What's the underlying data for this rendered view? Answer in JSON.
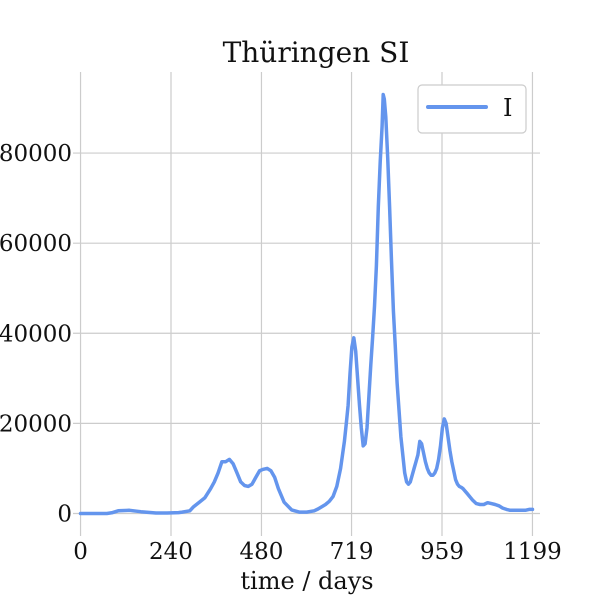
{
  "chart_data": {
    "type": "line",
    "title": "Thüringen SI",
    "xlabel": "time / days",
    "ylabel": "",
    "xlim": [
      -20,
      1219
    ],
    "ylim": [
      -5000,
      98000
    ],
    "x_ticks": [
      0,
      240,
      480,
      719,
      959,
      1199
    ],
    "x_tick_labels": [
      "0",
      "240",
      "480",
      "719",
      "959",
      "1199"
    ],
    "y_ticks": [
      0,
      20000,
      40000,
      60000,
      80000
    ],
    "y_tick_labels": [
      "0",
      "20000",
      "40000",
      "60000",
      "80000"
    ],
    "grid": true,
    "legend_position": "top-right",
    "colors": {
      "series": "#6495ED",
      "grid": "#cccccc",
      "legend_border": "#cccccc"
    },
    "series": [
      {
        "name": "I",
        "x": [
          0,
          40,
          70,
          85,
          100,
          130,
          160,
          200,
          230,
          260,
          270,
          290,
          300,
          315,
          330,
          345,
          355,
          365,
          375,
          385,
          395,
          405,
          415,
          425,
          435,
          445,
          455,
          465,
          475,
          485,
          495,
          505,
          515,
          525,
          540,
          560,
          580,
          600,
          620,
          630,
          640,
          650,
          660,
          670,
          680,
          690,
          695,
          700,
          705,
          710,
          715,
          720,
          725,
          730,
          735,
          740,
          745,
          750,
          755,
          760,
          765,
          770,
          775,
          780,
          785,
          790,
          795,
          800,
          803,
          806,
          810,
          815,
          820,
          825,
          830,
          835,
          840,
          845,
          850,
          855,
          860,
          865,
          870,
          875,
          880,
          885,
          890,
          895,
          900,
          905,
          910,
          915,
          920,
          925,
          930,
          935,
          940,
          945,
          950,
          955,
          960,
          965,
          970,
          975,
          980,
          985,
          990,
          995,
          1000,
          1005,
          1010,
          1015,
          1020,
          1025,
          1030,
          1035,
          1040,
          1050,
          1060,
          1070,
          1080,
          1090,
          1100,
          1110,
          1120,
          1130,
          1140,
          1150,
          1160,
          1170,
          1180,
          1190,
          1199
        ],
        "values": [
          0,
          0,
          0,
          200,
          600,
          700,
          400,
          100,
          100,
          200,
          300,
          600,
          1500,
          2500,
          3500,
          5500,
          7000,
          9000,
          11500,
          11500,
          12000,
          11000,
          9000,
          7000,
          6200,
          6000,
          6500,
          8000,
          9500,
          9800,
          10000,
          9500,
          8000,
          5500,
          2500,
          800,
          300,
          300,
          600,
          1000,
          1500,
          2000,
          2700,
          3800,
          6000,
          10000,
          13000,
          16000,
          20000,
          24000,
          31000,
          37000,
          39000,
          36000,
          30000,
          24000,
          19000,
          15000,
          15500,
          19000,
          26000,
          33000,
          39000,
          46000,
          55000,
          68000,
          78000,
          86000,
          93000,
          92000,
          88000,
          79000,
          68000,
          56000,
          45000,
          37000,
          29000,
          23000,
          17000,
          13000,
          9000,
          7000,
          6500,
          7000,
          8500,
          10000,
          11500,
          13000,
          16000,
          15500,
          13500,
          11500,
          10000,
          9000,
          8500,
          8500,
          9000,
          10000,
          12000,
          15000,
          19000,
          21000,
          20000,
          17000,
          14000,
          11500,
          9500,
          7500,
          6500,
          6000,
          5800,
          5500,
          5000,
          4500,
          4000,
          3500,
          3000,
          2200,
          2000,
          2000,
          2400,
          2200,
          2000,
          1700,
          1200,
          900,
          700,
          700,
          700,
          700,
          700,
          900,
          900
        ]
      }
    ]
  }
}
